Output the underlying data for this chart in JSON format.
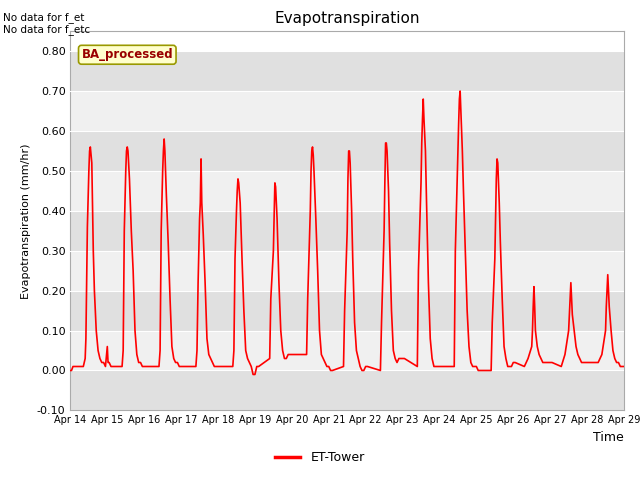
{
  "title": "Evapotranspiration",
  "xlabel": "Time",
  "ylabel": "Evapotranspiration (mm/hr)",
  "ylim": [
    -0.1,
    0.85
  ],
  "yticks": [
    -0.1,
    0.0,
    0.1,
    0.2,
    0.3,
    0.4,
    0.5,
    0.6,
    0.7,
    0.8
  ],
  "line_color": "red",
  "legend_label": "ET-Tower",
  "nodata_text1": "No data for f_et",
  "nodata_text2": "No data for f_etc",
  "box_label": "BA_processed",
  "background_color": "#ffffff",
  "plot_bg_color": "#ffffff",
  "band_color_dark": "#e0e0e0",
  "band_color_light": "#f0f0f0",
  "xtick_labels": [
    "Apr 14",
    "Apr 15",
    "Apr 16",
    "Apr 17",
    "Apr 18",
    "Apr 19",
    "Apr 20",
    "Apr 21",
    "Apr 22",
    "Apr 23",
    "Apr 24",
    "Apr 25",
    "Apr 26",
    "Apr 27",
    "Apr 28",
    "Apr 29"
  ],
  "xtick_positions": [
    14,
    15,
    16,
    17,
    18,
    19,
    20,
    21,
    22,
    23,
    24,
    25,
    26,
    27,
    28,
    29
  ],
  "peaks": [
    [
      14.0,
      0.0
    ],
    [
      14.03,
      0.0
    ],
    [
      14.07,
      0.01
    ],
    [
      14.1,
      0.01
    ],
    [
      14.35,
      0.01
    ],
    [
      14.4,
      0.03
    ],
    [
      14.42,
      0.08
    ],
    [
      14.46,
      0.36
    ],
    [
      14.5,
      0.5
    ],
    [
      14.52,
      0.55
    ],
    [
      14.54,
      0.56
    ],
    [
      14.56,
      0.54
    ],
    [
      14.58,
      0.52
    ],
    [
      14.62,
      0.3
    ],
    [
      14.65,
      0.2
    ],
    [
      14.7,
      0.1
    ],
    [
      14.75,
      0.05
    ],
    [
      14.8,
      0.03
    ],
    [
      14.85,
      0.02
    ],
    [
      14.9,
      0.02
    ],
    [
      14.95,
      0.01
    ],
    [
      15.0,
      0.06
    ],
    [
      15.02,
      0.02
    ],
    [
      15.05,
      0.02
    ],
    [
      15.1,
      0.01
    ],
    [
      15.2,
      0.01
    ],
    [
      15.3,
      0.01
    ],
    [
      15.4,
      0.01
    ],
    [
      15.43,
      0.05
    ],
    [
      15.46,
      0.35
    ],
    [
      15.5,
      0.5
    ],
    [
      15.52,
      0.55
    ],
    [
      15.54,
      0.56
    ],
    [
      15.56,
      0.55
    ],
    [
      15.6,
      0.48
    ],
    [
      15.65,
      0.35
    ],
    [
      15.7,
      0.25
    ],
    [
      15.75,
      0.1
    ],
    [
      15.8,
      0.04
    ],
    [
      15.85,
      0.02
    ],
    [
      15.9,
      0.02
    ],
    [
      15.95,
      0.01
    ],
    [
      16.0,
      0.01
    ],
    [
      16.1,
      0.01
    ],
    [
      16.2,
      0.01
    ],
    [
      16.4,
      0.01
    ],
    [
      16.43,
      0.05
    ],
    [
      16.46,
      0.35
    ],
    [
      16.5,
      0.5
    ],
    [
      16.52,
      0.55
    ],
    [
      16.54,
      0.58
    ],
    [
      16.56,
      0.55
    ],
    [
      16.6,
      0.44
    ],
    [
      16.65,
      0.32
    ],
    [
      16.7,
      0.18
    ],
    [
      16.75,
      0.06
    ],
    [
      16.8,
      0.03
    ],
    [
      16.85,
      0.02
    ],
    [
      16.9,
      0.02
    ],
    [
      16.95,
      0.01
    ],
    [
      17.0,
      0.01
    ],
    [
      17.1,
      0.01
    ],
    [
      17.4,
      0.01
    ],
    [
      17.43,
      0.05
    ],
    [
      17.46,
      0.22
    ],
    [
      17.5,
      0.38
    ],
    [
      17.52,
      0.42
    ],
    [
      17.54,
      0.53
    ],
    [
      17.56,
      0.42
    ],
    [
      17.58,
      0.38
    ],
    [
      17.6,
      0.34
    ],
    [
      17.65,
      0.22
    ],
    [
      17.7,
      0.08
    ],
    [
      17.75,
      0.04
    ],
    [
      17.8,
      0.03
    ],
    [
      17.85,
      0.02
    ],
    [
      17.9,
      0.01
    ],
    [
      17.95,
      0.01
    ],
    [
      18.0,
      0.01
    ],
    [
      18.1,
      0.01
    ],
    [
      18.4,
      0.01
    ],
    [
      18.43,
      0.05
    ],
    [
      18.46,
      0.28
    ],
    [
      18.5,
      0.4
    ],
    [
      18.52,
      0.45
    ],
    [
      18.54,
      0.48
    ],
    [
      18.56,
      0.47
    ],
    [
      18.6,
      0.42
    ],
    [
      18.65,
      0.28
    ],
    [
      18.7,
      0.15
    ],
    [
      18.75,
      0.05
    ],
    [
      18.8,
      0.03
    ],
    [
      18.85,
      0.02
    ],
    [
      18.9,
      0.01
    ],
    [
      18.95,
      -0.01
    ],
    [
      19.0,
      -0.01
    ],
    [
      19.05,
      0.01
    ],
    [
      19.1,
      0.01
    ],
    [
      19.4,
      0.03
    ],
    [
      19.43,
      0.18
    ],
    [
      19.5,
      0.3
    ],
    [
      19.52,
      0.38
    ],
    [
      19.54,
      0.47
    ],
    [
      19.56,
      0.46
    ],
    [
      19.6,
      0.38
    ],
    [
      19.65,
      0.22
    ],
    [
      19.7,
      0.1
    ],
    [
      19.75,
      0.05
    ],
    [
      19.8,
      0.03
    ],
    [
      19.85,
      0.03
    ],
    [
      19.9,
      0.04
    ],
    [
      19.95,
      0.04
    ],
    [
      20.0,
      0.04
    ],
    [
      20.1,
      0.04
    ],
    [
      20.4,
      0.04
    ],
    [
      20.43,
      0.18
    ],
    [
      20.5,
      0.4
    ],
    [
      20.52,
      0.5
    ],
    [
      20.54,
      0.55
    ],
    [
      20.56,
      0.56
    ],
    [
      20.58,
      0.54
    ],
    [
      20.6,
      0.5
    ],
    [
      20.65,
      0.38
    ],
    [
      20.7,
      0.25
    ],
    [
      20.75,
      0.1
    ],
    [
      20.8,
      0.04
    ],
    [
      20.85,
      0.03
    ],
    [
      20.9,
      0.02
    ],
    [
      20.95,
      0.01
    ],
    [
      21.0,
      0.01
    ],
    [
      21.05,
      0.0
    ],
    [
      21.1,
      0.0
    ],
    [
      21.4,
      0.01
    ],
    [
      21.43,
      0.15
    ],
    [
      21.5,
      0.35
    ],
    [
      21.52,
      0.48
    ],
    [
      21.54,
      0.55
    ],
    [
      21.56,
      0.55
    ],
    [
      21.58,
      0.52
    ],
    [
      21.62,
      0.4
    ],
    [
      21.65,
      0.28
    ],
    [
      21.7,
      0.12
    ],
    [
      21.75,
      0.05
    ],
    [
      21.8,
      0.03
    ],
    [
      21.85,
      0.01
    ],
    [
      21.9,
      0.0
    ],
    [
      21.95,
      0.0
    ],
    [
      22.0,
      0.01
    ],
    [
      22.05,
      0.01
    ],
    [
      22.4,
      0.0
    ],
    [
      22.43,
      0.12
    ],
    [
      22.5,
      0.35
    ],
    [
      22.52,
      0.47
    ],
    [
      22.54,
      0.57
    ],
    [
      22.56,
      0.57
    ],
    [
      22.58,
      0.55
    ],
    [
      22.62,
      0.45
    ],
    [
      22.65,
      0.32
    ],
    [
      22.7,
      0.15
    ],
    [
      22.75,
      0.05
    ],
    [
      22.8,
      0.03
    ],
    [
      22.85,
      0.02
    ],
    [
      22.9,
      0.03
    ],
    [
      22.95,
      0.03
    ],
    [
      23.0,
      0.03
    ],
    [
      23.05,
      0.03
    ],
    [
      23.4,
      0.01
    ],
    [
      23.43,
      0.25
    ],
    [
      23.5,
      0.47
    ],
    [
      23.52,
      0.57
    ],
    [
      23.54,
      0.63
    ],
    [
      23.56,
      0.68
    ],
    [
      23.58,
      0.63
    ],
    [
      23.62,
      0.55
    ],
    [
      23.65,
      0.42
    ],
    [
      23.7,
      0.22
    ],
    [
      23.75,
      0.08
    ],
    [
      23.8,
      0.03
    ],
    [
      23.85,
      0.01
    ],
    [
      23.9,
      0.01
    ],
    [
      23.95,
      0.01
    ],
    [
      24.0,
      0.01
    ],
    [
      24.05,
      0.01
    ],
    [
      24.4,
      0.01
    ],
    [
      24.43,
      0.3
    ],
    [
      24.5,
      0.55
    ],
    [
      24.52,
      0.62
    ],
    [
      24.54,
      0.68
    ],
    [
      24.56,
      0.7
    ],
    [
      24.58,
      0.65
    ],
    [
      24.62,
      0.55
    ],
    [
      24.65,
      0.45
    ],
    [
      24.7,
      0.3
    ],
    [
      24.75,
      0.15
    ],
    [
      24.8,
      0.06
    ],
    [
      24.85,
      0.02
    ],
    [
      24.9,
      0.01
    ],
    [
      24.95,
      0.01
    ],
    [
      25.0,
      0.01
    ],
    [
      25.05,
      0.0
    ],
    [
      25.4,
      0.0
    ],
    [
      25.43,
      0.12
    ],
    [
      25.5,
      0.28
    ],
    [
      25.52,
      0.38
    ],
    [
      25.54,
      0.48
    ],
    [
      25.56,
      0.53
    ],
    [
      25.58,
      0.52
    ],
    [
      25.62,
      0.42
    ],
    [
      25.65,
      0.32
    ],
    [
      25.7,
      0.18
    ],
    [
      25.75,
      0.06
    ],
    [
      25.8,
      0.03
    ],
    [
      25.85,
      0.01
    ],
    [
      25.9,
      0.01
    ],
    [
      25.95,
      0.01
    ],
    [
      26.0,
      0.02
    ],
    [
      26.05,
      0.02
    ],
    [
      26.3,
      0.01
    ],
    [
      26.4,
      0.03
    ],
    [
      26.5,
      0.06
    ],
    [
      26.52,
      0.1
    ],
    [
      26.54,
      0.16
    ],
    [
      26.56,
      0.21
    ],
    [
      26.58,
      0.16
    ],
    [
      26.6,
      0.1
    ],
    [
      26.65,
      0.06
    ],
    [
      26.7,
      0.04
    ],
    [
      26.75,
      0.03
    ],
    [
      26.8,
      0.02
    ],
    [
      26.85,
      0.02
    ],
    [
      26.9,
      0.02
    ],
    [
      26.95,
      0.02
    ],
    [
      27.0,
      0.02
    ],
    [
      27.05,
      0.02
    ],
    [
      27.3,
      0.01
    ],
    [
      27.4,
      0.04
    ],
    [
      27.5,
      0.1
    ],
    [
      27.52,
      0.14
    ],
    [
      27.54,
      0.18
    ],
    [
      27.56,
      0.22
    ],
    [
      27.58,
      0.18
    ],
    [
      27.6,
      0.14
    ],
    [
      27.65,
      0.1
    ],
    [
      27.7,
      0.06
    ],
    [
      27.75,
      0.04
    ],
    [
      27.8,
      0.03
    ],
    [
      27.85,
      0.02
    ],
    [
      27.9,
      0.02
    ],
    [
      27.95,
      0.02
    ],
    [
      28.0,
      0.02
    ],
    [
      28.05,
      0.02
    ],
    [
      28.3,
      0.02
    ],
    [
      28.4,
      0.04
    ],
    [
      28.5,
      0.1
    ],
    [
      28.52,
      0.16
    ],
    [
      28.54,
      0.2
    ],
    [
      28.56,
      0.24
    ],
    [
      28.58,
      0.2
    ],
    [
      28.6,
      0.16
    ],
    [
      28.65,
      0.1
    ],
    [
      28.7,
      0.05
    ],
    [
      28.75,
      0.03
    ],
    [
      28.8,
      0.02
    ],
    [
      28.85,
      0.02
    ],
    [
      28.9,
      0.01
    ],
    [
      28.95,
      0.01
    ],
    [
      29.0,
      0.01
    ]
  ]
}
